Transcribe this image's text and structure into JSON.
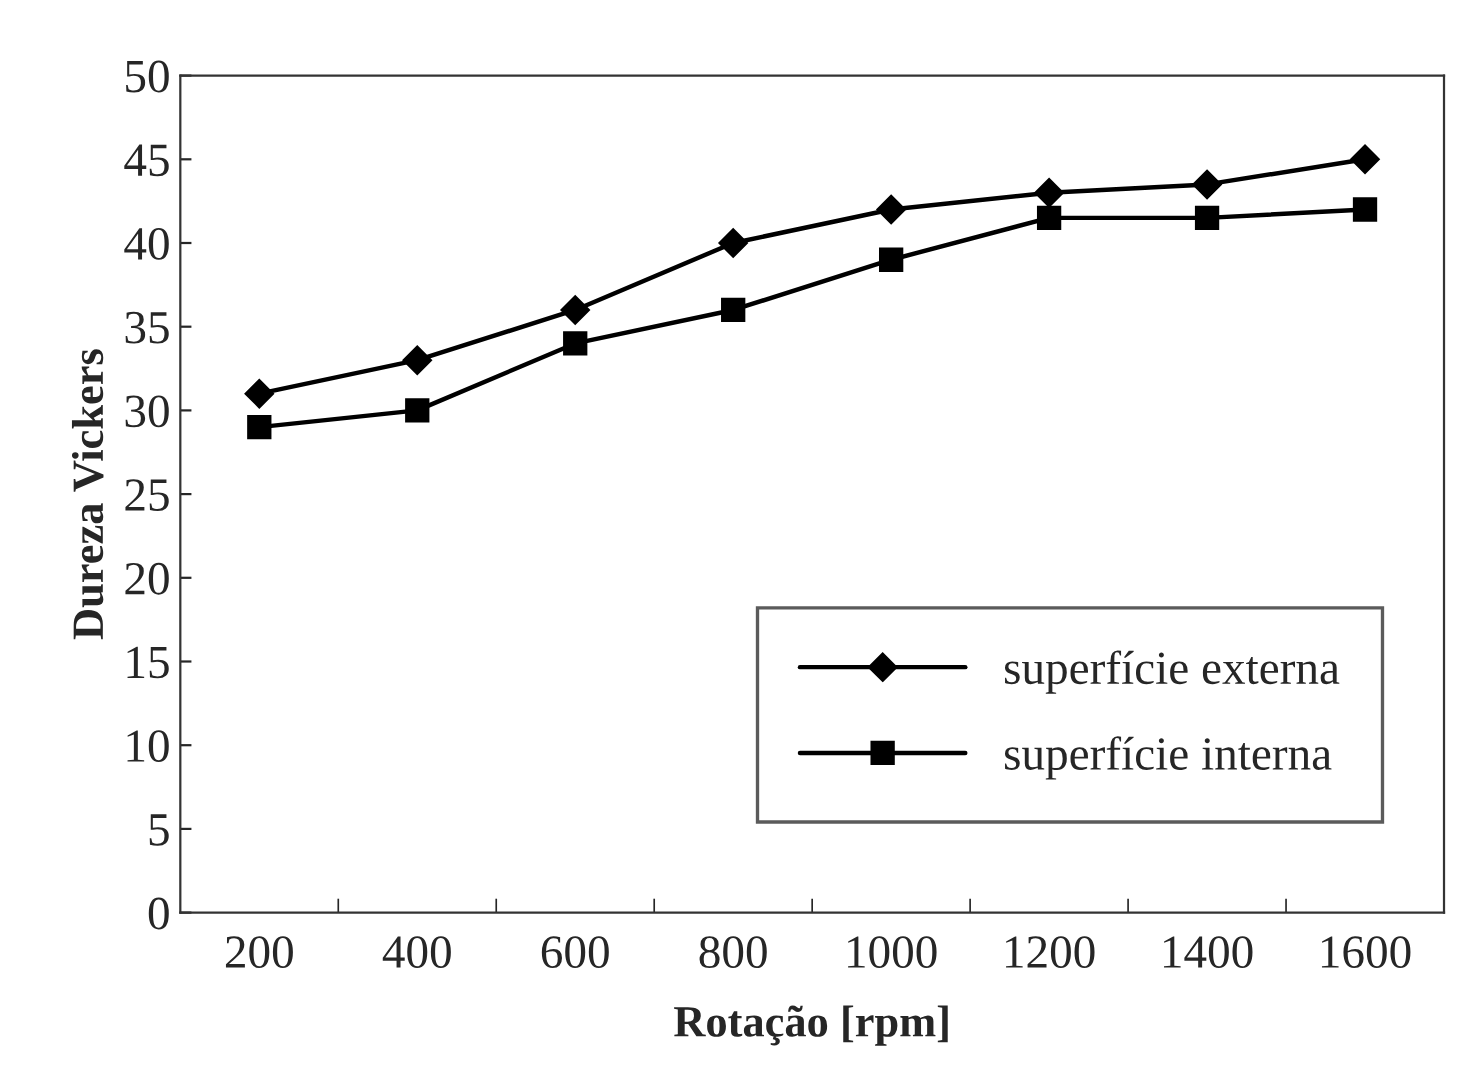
{
  "chart_data": {
    "type": "line",
    "xlabel": "Rotação [rpm]",
    "ylabel": "Dureza Vickers",
    "categories": [
      "200",
      "400",
      "600",
      "800",
      "1000",
      "1200",
      "1400",
      "1600"
    ],
    "series": [
      {
        "name": "superfície externa",
        "color": "#000000",
        "marker": "diamond",
        "values": [
          31,
          33,
          36,
          40,
          42,
          43,
          43.5,
          45
        ]
      },
      {
        "name": "superfície interna",
        "color": "#000000",
        "marker": "square",
        "values": [
          29,
          30,
          34,
          36,
          39,
          41.5,
          41.5,
          42
        ]
      }
    ],
    "ylim": [
      0,
      50
    ],
    "yticks": [
      0,
      5,
      10,
      15,
      20,
      25,
      30,
      35,
      40,
      45,
      50
    ],
    "grid": false,
    "legend": "bottom right",
    "line_style": "solid"
  }
}
